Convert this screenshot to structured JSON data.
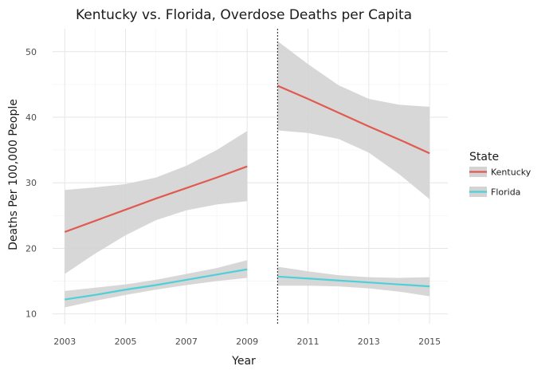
{
  "chart_data": {
    "type": "line",
    "title": "Kentucky vs. Florida, Overdose Deaths per Capita",
    "xlabel": "Year",
    "ylabel": "Deaths Per 100,000 People",
    "xlim": [
      2002.6,
      2015.6
    ],
    "ylim": [
      8.5,
      53.5
    ],
    "x_ticks": [
      2003,
      2005,
      2007,
      2009,
      2011,
      2013,
      2015
    ],
    "y_ticks": [
      10,
      20,
      30,
      40,
      50
    ],
    "grid": true,
    "vline": 2010,
    "legend": {
      "title": "State",
      "placement": "right",
      "entries": [
        "Kentucky",
        "Florida"
      ]
    },
    "colors": {
      "Kentucky": "#e05a4f",
      "Florida": "#4dd0d8",
      "band": "#d3d3d3"
    },
    "series": [
      {
        "name": "Kentucky",
        "segment": "pre",
        "x": [
          2003,
          2004,
          2005,
          2006,
          2007,
          2008,
          2009
        ],
        "values": [
          22.5,
          24.2,
          25.9,
          27.6,
          29.2,
          30.8,
          32.5
        ],
        "lower": [
          16.1,
          19.2,
          22.0,
          24.3,
          25.8,
          26.7,
          27.2
        ],
        "upper": [
          28.9,
          29.3,
          29.8,
          30.8,
          32.6,
          35.0,
          37.9
        ]
      },
      {
        "name": "Kentucky",
        "segment": "post",
        "x": [
          2010,
          2011,
          2012,
          2013,
          2014,
          2015
        ],
        "values": [
          44.8,
          42.8,
          40.7,
          38.6,
          36.6,
          34.5
        ],
        "lower": [
          38.0,
          37.6,
          36.7,
          34.6,
          31.3,
          27.5
        ],
        "upper": [
          51.6,
          48.1,
          44.9,
          42.8,
          41.9,
          41.6
        ]
      },
      {
        "name": "Florida",
        "segment": "pre",
        "x": [
          2003,
          2004,
          2005,
          2006,
          2007,
          2008,
          2009
        ],
        "values": [
          12.2,
          12.9,
          13.7,
          14.4,
          15.2,
          16.0,
          16.8
        ],
        "lower": [
          11.0,
          12.0,
          12.9,
          13.7,
          14.4,
          15.0,
          15.5
        ],
        "upper": [
          13.5,
          14.0,
          14.5,
          15.2,
          16.1,
          17.0,
          18.2
        ]
      },
      {
        "name": "Florida",
        "segment": "post",
        "x": [
          2010,
          2011,
          2012,
          2013,
          2014,
          2015
        ],
        "values": [
          15.7,
          15.4,
          15.1,
          14.8,
          14.5,
          14.2
        ],
        "lower": [
          14.3,
          14.3,
          14.2,
          13.9,
          13.4,
          12.7
        ],
        "upper": [
          17.2,
          16.5,
          15.9,
          15.6,
          15.5,
          15.6
        ]
      }
    ]
  }
}
